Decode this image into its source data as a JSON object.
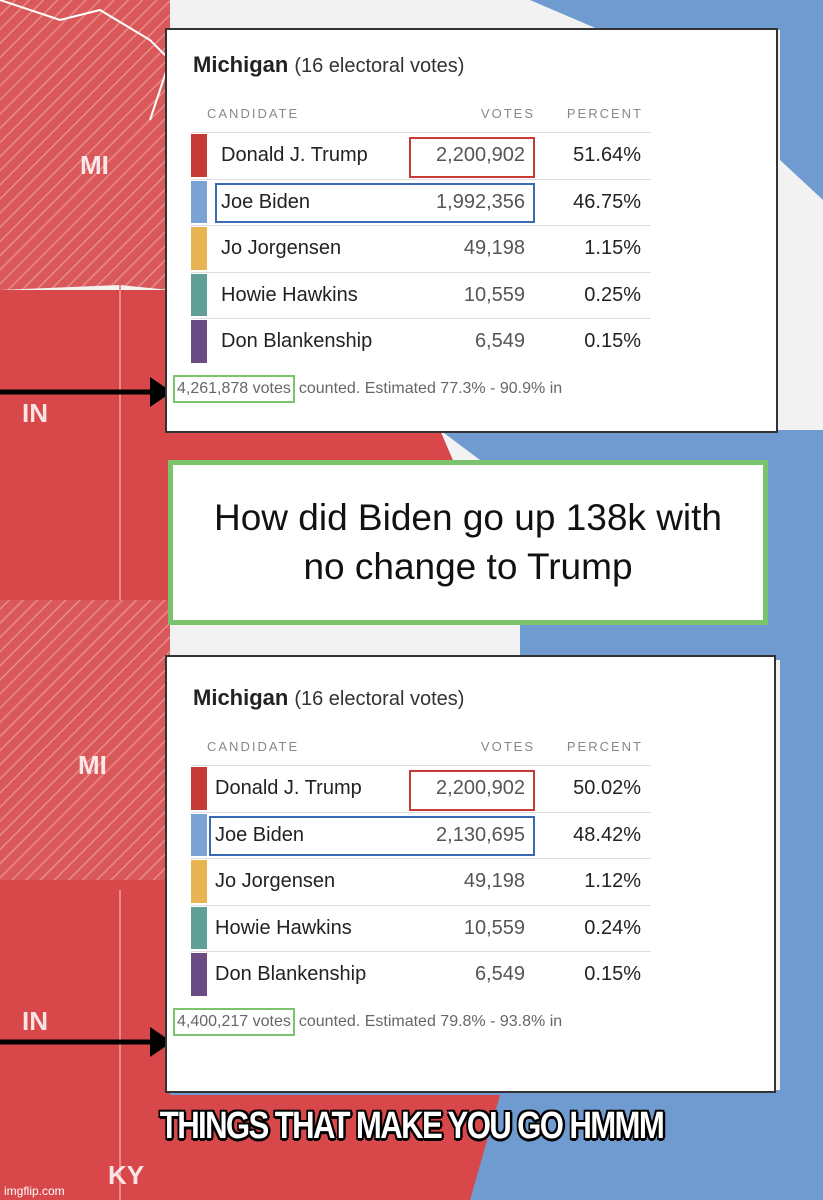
{
  "map_labels": [
    "MI",
    "IN",
    "MI",
    "IN",
    "KY"
  ],
  "panels": [
    {
      "title": "Michigan",
      "subtitle": "(16 electoral votes)",
      "headers": [
        "CANDIDATE",
        "VOTES",
        "PERCENT"
      ],
      "rows": [
        {
          "name": "Donald J. Trump",
          "votes": "2,200,902",
          "percent": "51.64%",
          "color": "#c63b36"
        },
        {
          "name": "Joe Biden",
          "votes": "1,992,356",
          "percent": "46.75%",
          "color": "#7aa3d4"
        },
        {
          "name": "Jo Jorgensen",
          "votes": "49,198",
          "percent": "1.15%",
          "color": "#e7b452"
        },
        {
          "name": "Howie Hawkins",
          "votes": "10,559",
          "percent": "0.25%",
          "color": "#5f9f98"
        },
        {
          "name": "Don Blankenship",
          "votes": "6,549",
          "percent": "0.15%",
          "color": "#6b4b83"
        }
      ],
      "total": "4,261,878 votes",
      "note": "counted. Estimated 77.3% - 90.9% in"
    },
    {
      "title": "Michigan",
      "subtitle": "(16 electoral votes)",
      "headers": [
        "CANDIDATE",
        "VOTES",
        "PERCENT"
      ],
      "rows": [
        {
          "name": "Donald J. Trump",
          "votes": "2,200,902",
          "percent": "50.02%",
          "color": "#c63b36"
        },
        {
          "name": "Joe Biden",
          "votes": "2,130,695",
          "percent": "48.42%",
          "color": "#7aa3d4"
        },
        {
          "name": "Jo Jorgensen",
          "votes": "49,198",
          "percent": "1.12%",
          "color": "#e7b452"
        },
        {
          "name": "Howie Hawkins",
          "votes": "10,559",
          "percent": "0.24%",
          "color": "#5f9f98"
        },
        {
          "name": "Don Blankenship",
          "votes": "6,549",
          "percent": "0.15%",
          "color": "#6b4b83"
        }
      ],
      "total": "4,400,217 votes",
      "note": "counted. Estimated 79.8% - 93.8% in"
    }
  ],
  "question": "How did Biden go up 138k with no change to Trump",
  "caption": "THINGS THAT MAKE YOU GO HMMM",
  "watermark": "imgflip.com"
}
